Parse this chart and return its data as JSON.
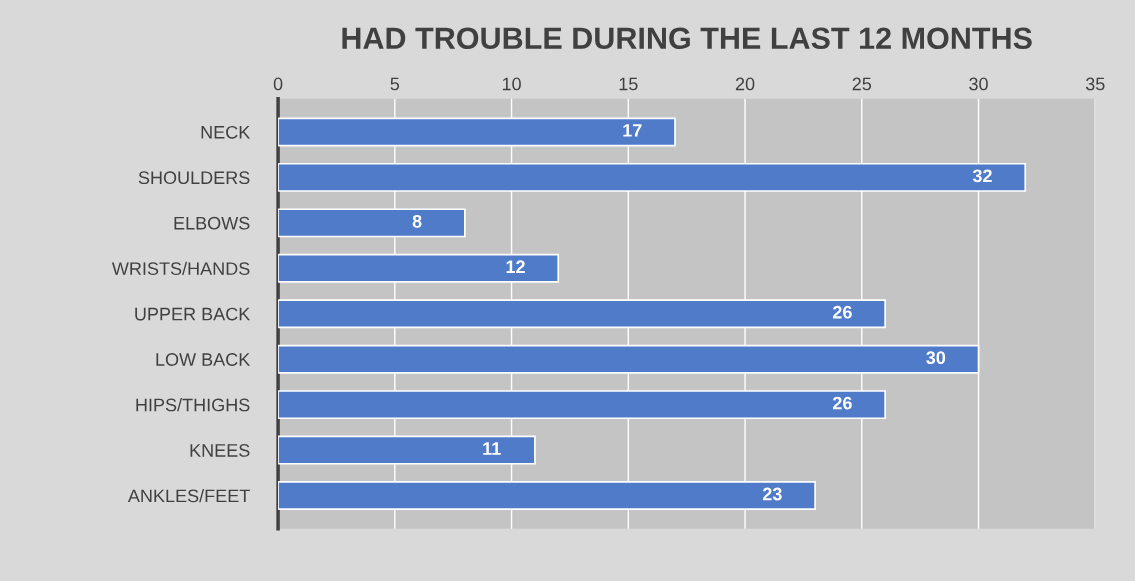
{
  "chart_data": {
    "type": "bar",
    "orientation": "horizontal",
    "title": "HAD TROUBLE DURING THE LAST 12 MONTHS",
    "categories": [
      "NECK",
      "SHOULDERS",
      "ELBOWS",
      "WRISTS/HANDS",
      "UPPER BACK",
      "LOW BACK",
      "HIPS/THIGHS",
      "KNEES",
      "ANKLES/FEET"
    ],
    "values": [
      17,
      32,
      8,
      12,
      26,
      30,
      26,
      11,
      23
    ],
    "color": "#4f7bc8",
    "xlim": [
      0,
      35
    ],
    "xticks": [
      0,
      5,
      10,
      15,
      20,
      25,
      30,
      35
    ],
    "grid": "x",
    "data_labels": true
  }
}
